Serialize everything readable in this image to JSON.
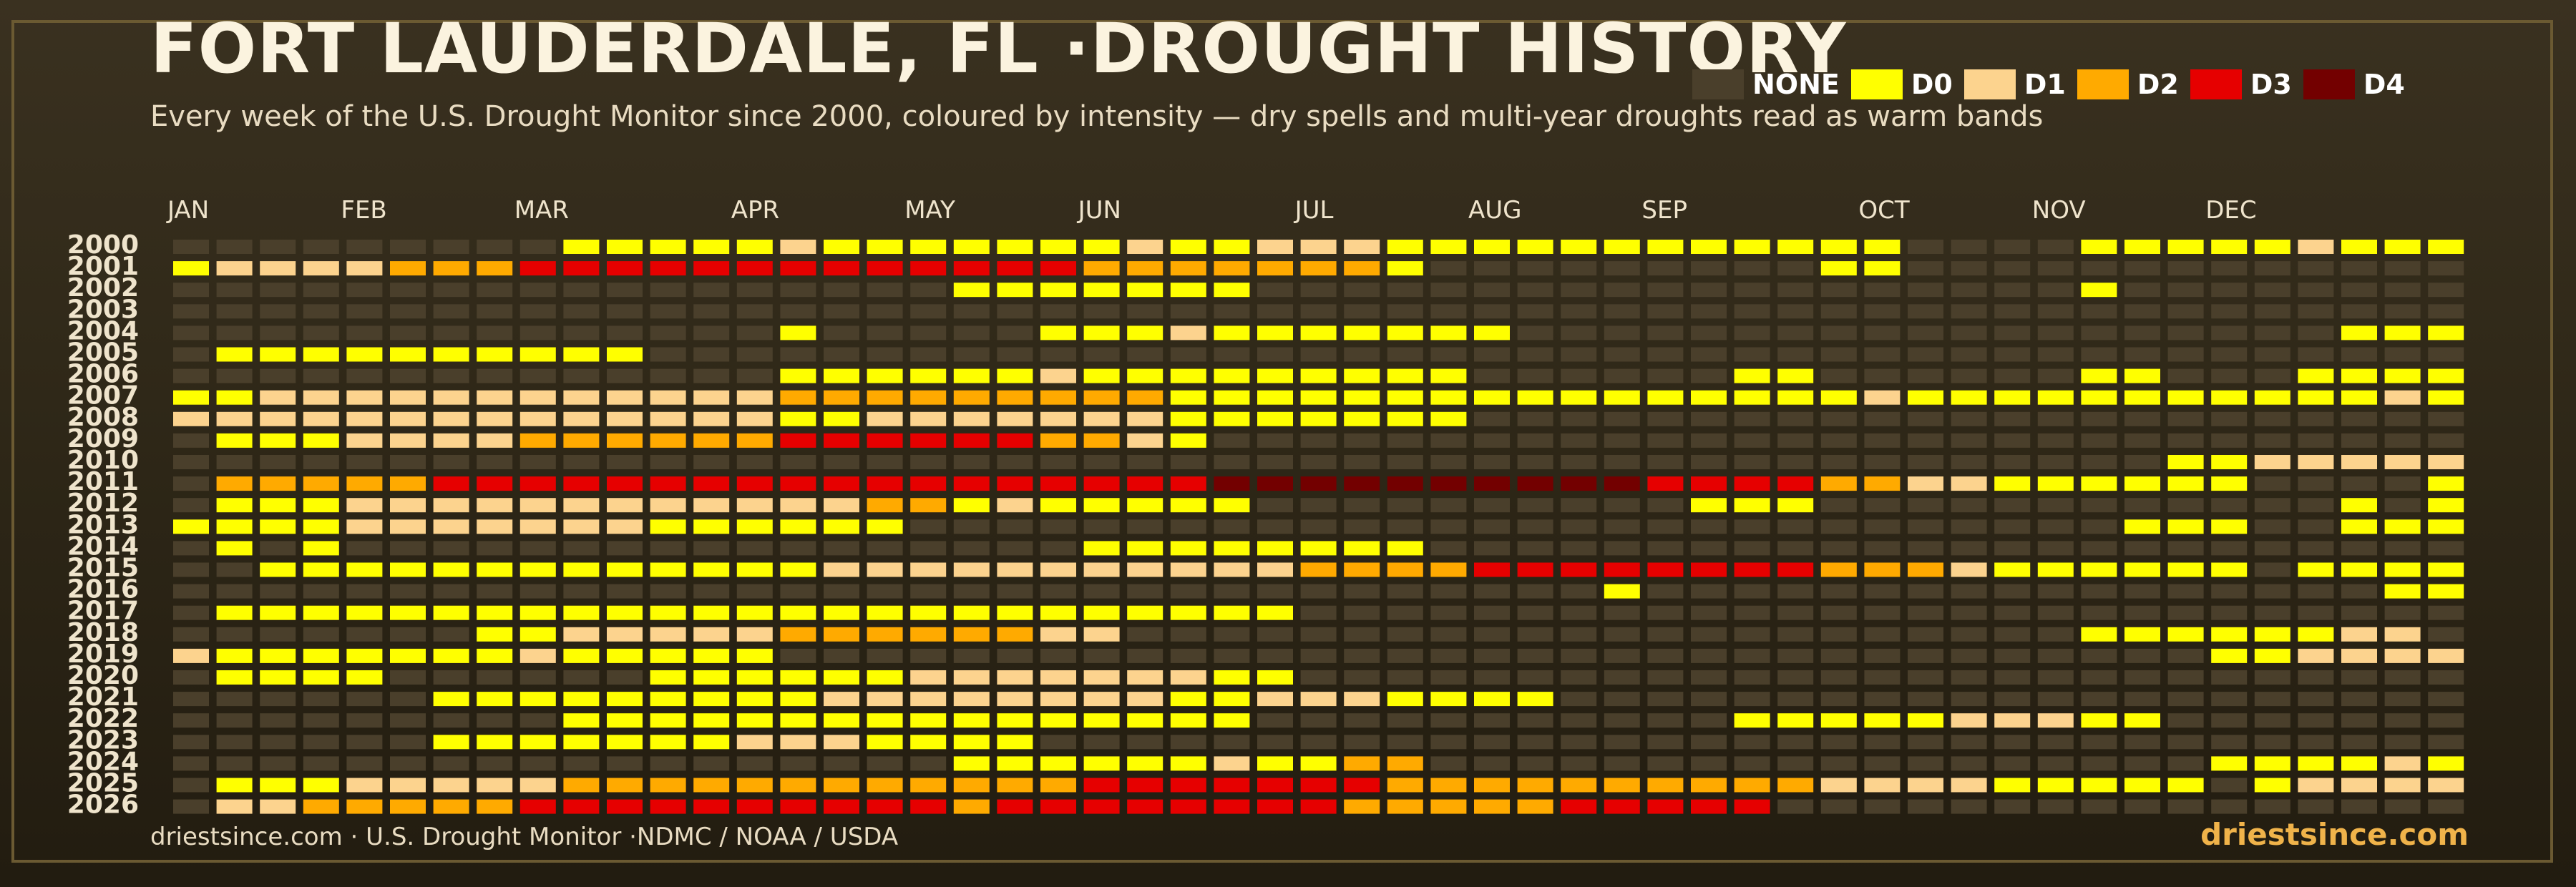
{
  "header": {
    "title": "FORT LAUDERDALE, FL ·DROUGHT HISTORY",
    "subtitle": "Every week of the U.S. Drought Monitor since 2000, coloured by intensity — dry spells and multi-year droughts read as warm bands"
  },
  "footer": {
    "source": "driestsince.com  · U.S. Drought Monitor ·NDMC / NOAA / USDA",
    "brand": "driestsince.com"
  },
  "colors": {
    "NONE": "#4a3f2b",
    "D0": "#ffff00",
    "D1": "#fcd38e",
    "D2": "#ffaa00",
    "D3": "#e60000",
    "D4": "#730000"
  },
  "legend": [
    {
      "label": "NONE",
      "level": 0
    },
    {
      "label": "D0",
      "level": 1
    },
    {
      "label": "D1",
      "level": 2
    },
    {
      "label": "D2",
      "level": 3
    },
    {
      "label": "D3",
      "level": 4
    },
    {
      "label": "D4",
      "level": 5
    }
  ],
  "chart_data": {
    "type": "heatmap",
    "title": "FORT LAUDERDALE, FL ·DROUGHT HISTORY",
    "x_axis": "week of year (1-53)",
    "months": [
      {
        "label": "JAN",
        "week": 1
      },
      {
        "label": "FEB",
        "week": 5
      },
      {
        "label": "MAR",
        "week": 9
      },
      {
        "label": "APR",
        "week": 14
      },
      {
        "label": "MAY",
        "week": 18
      },
      {
        "label": "JUN",
        "week": 22
      },
      {
        "label": "JUL",
        "week": 27
      },
      {
        "label": "AUG",
        "week": 31
      },
      {
        "label": "SEP",
        "week": 35
      },
      {
        "label": "OCT",
        "week": 40
      },
      {
        "label": "NOV",
        "week": 44
      },
      {
        "label": "DEC",
        "week": 48
      }
    ],
    "levels": [
      "NONE",
      "D0",
      "D1",
      "D2",
      "D3",
      "D4"
    ],
    "weeks_per_year": 53,
    "years": [
      "2000",
      "2001",
      "2002",
      "2003",
      "2004",
      "2005",
      "2006",
      "2007",
      "2008",
      "2009",
      "2010",
      "2011",
      "2012",
      "2013",
      "2014",
      "2015",
      "2016",
      "2017",
      "2018",
      "2019",
      "2020",
      "2021",
      "2022",
      "2023",
      "2024",
      "2025",
      "2026"
    ],
    "rows": [
      "00000000011111211111112112221111111111110000111112111",
      "12222333444444444444433333331000000000110000000000000",
      "00000000000000000011111110000000000000000000100000000",
      "00000000000000000000000000000000000000000000000000000",
      "00000000000000100000111211111110000000000000000000111",
      "01111111111000000000000000000000000000000000000000000",
      "00000000000000111111211111111100000011000000110001111",
      "11222222222222333333333111111111111111121111111111121",
      "22222222222222112222222111111100000000000000000000000",
      "01112222333333444444332100000000000000000000000000000",
      "00000000000000000000000000000000000000000000001122222",
      "03333344444444444444444455555555554444332211111100001",
      "01112222222222223312111110000000000111000000000000101",
      "11112222222111111000000000000000000000000000011100111",
      "01010000000000000000011111111000000000000000000000000",
      "00111111111111122222222222333344444444333211111101111",
      "00000000000000000000000000000000010000000000000000011",
      "01111111111111111111111111000000000000000000000000000",
      "00000001122222333333220000000000000000000000111111220",
      "21111111211111000000000000000000000000000000000112222",
      "01111000000111111222222211000000000000000000000000000",
      "00000011111111122222222112221111000000000000000000000",
      "00000000011111111111111110000000000011111222110000000",
      "00000011111112221111000000000000000000000000000000000",
      "00000000000000000011111121133000000000000000000111121",
      "01112222233333333333344444443333333333222211111012222",
      "02233333444444444434444444433333444440000000000000000"
    ]
  }
}
